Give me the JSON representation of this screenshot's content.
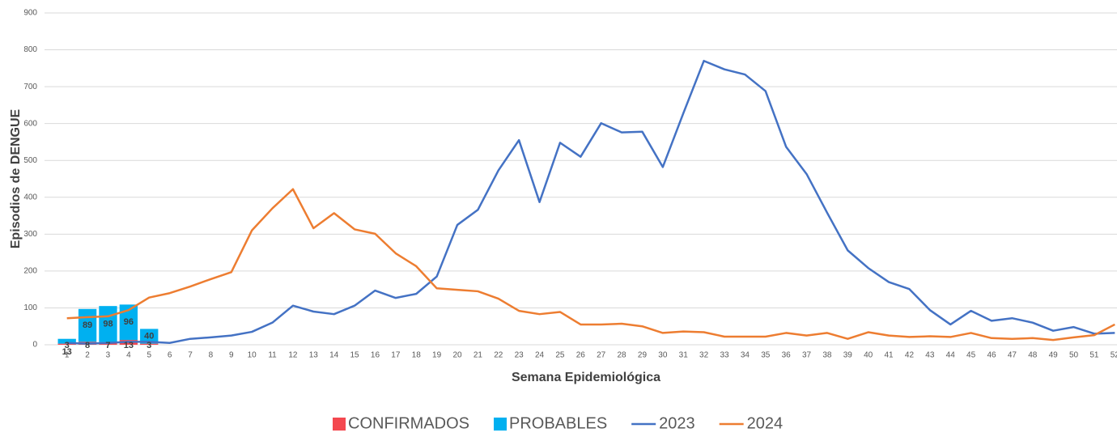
{
  "chart_data": {
    "type": "combo",
    "x_label": "Semana Epidemiológica",
    "y_label": "Episodios  de DENGUE",
    "categories": [
      "1",
      "2",
      "3",
      "4",
      "5",
      "6",
      "7",
      "8",
      "9",
      "10",
      "11",
      "12",
      "13",
      "14",
      "15",
      "16",
      "17",
      "18",
      "19",
      "20",
      "21",
      "22",
      "23",
      "24",
      "25",
      "26",
      "27",
      "28",
      "29",
      "30",
      "31",
      "32",
      "33",
      "34",
      "35",
      "36",
      "37",
      "38",
      "39",
      "40",
      "41",
      "42",
      "43",
      "44",
      "45",
      "46",
      "47",
      "48",
      "49",
      "50",
      "51",
      "52"
    ],
    "ylim": [
      0,
      900
    ],
    "yticks": [
      0,
      100,
      200,
      300,
      400,
      500,
      600,
      700,
      800,
      900
    ],
    "grid": true,
    "legend": "bottom",
    "series": [
      {
        "name": "CONFIRMADOS",
        "type": "bar",
        "color": "#f4484f",
        "values": [
          3,
          8,
          7,
          13,
          3,
          null,
          null,
          null,
          null,
          null,
          null,
          null,
          null,
          null,
          null,
          null,
          null,
          null,
          null,
          null,
          null,
          null,
          null,
          null,
          null,
          null,
          null,
          null,
          null,
          null,
          null,
          null,
          null,
          null,
          null,
          null,
          null,
          null,
          null,
          null,
          null,
          null,
          null,
          null,
          null,
          null,
          null,
          null,
          null,
          null,
          null,
          null
        ]
      },
      {
        "name": "PROBABLES",
        "type": "bar",
        "color": "#00b0f0",
        "values": [
          13,
          89,
          98,
          96,
          40,
          null,
          null,
          null,
          null,
          null,
          null,
          null,
          null,
          null,
          null,
          null,
          null,
          null,
          null,
          null,
          null,
          null,
          null,
          null,
          null,
          null,
          null,
          null,
          null,
          null,
          null,
          null,
          null,
          null,
          null,
          null,
          null,
          null,
          null,
          null,
          null,
          null,
          null,
          null,
          null,
          null,
          null,
          null,
          null,
          null,
          null,
          null
        ]
      },
      {
        "name": "2023",
        "type": "line",
        "color": "#4472c4",
        "values": [
          5,
          3,
          5,
          8,
          8,
          5,
          16,
          20,
          25,
          35,
          60,
          106,
          90,
          83,
          106,
          147,
          127,
          138,
          185,
          325,
          366,
          473,
          555,
          387,
          548,
          510,
          601,
          576,
          578,
          482,
          628,
          770,
          747,
          733,
          688,
          537,
          463,
          358,
          256,
          208,
          170,
          151,
          94,
          55,
          92,
          65,
          72,
          60,
          38,
          48,
          30,
          32
        ]
      },
      {
        "name": "2024",
        "type": "line",
        "color": "#ed7d31",
        "values": [
          72,
          75,
          77,
          94,
          128,
          140,
          158,
          178,
          197,
          310,
          370,
          422,
          316,
          357,
          313,
          301,
          248,
          213,
          153,
          149,
          145,
          125,
          92,
          83,
          89,
          55,
          55,
          57,
          50,
          32,
          36,
          34,
          22,
          22,
          22,
          32,
          25,
          32,
          16,
          34,
          25,
          21,
          23,
          21,
          32,
          18,
          16,
          18,
          13,
          20,
          26,
          55
        ]
      }
    ]
  }
}
